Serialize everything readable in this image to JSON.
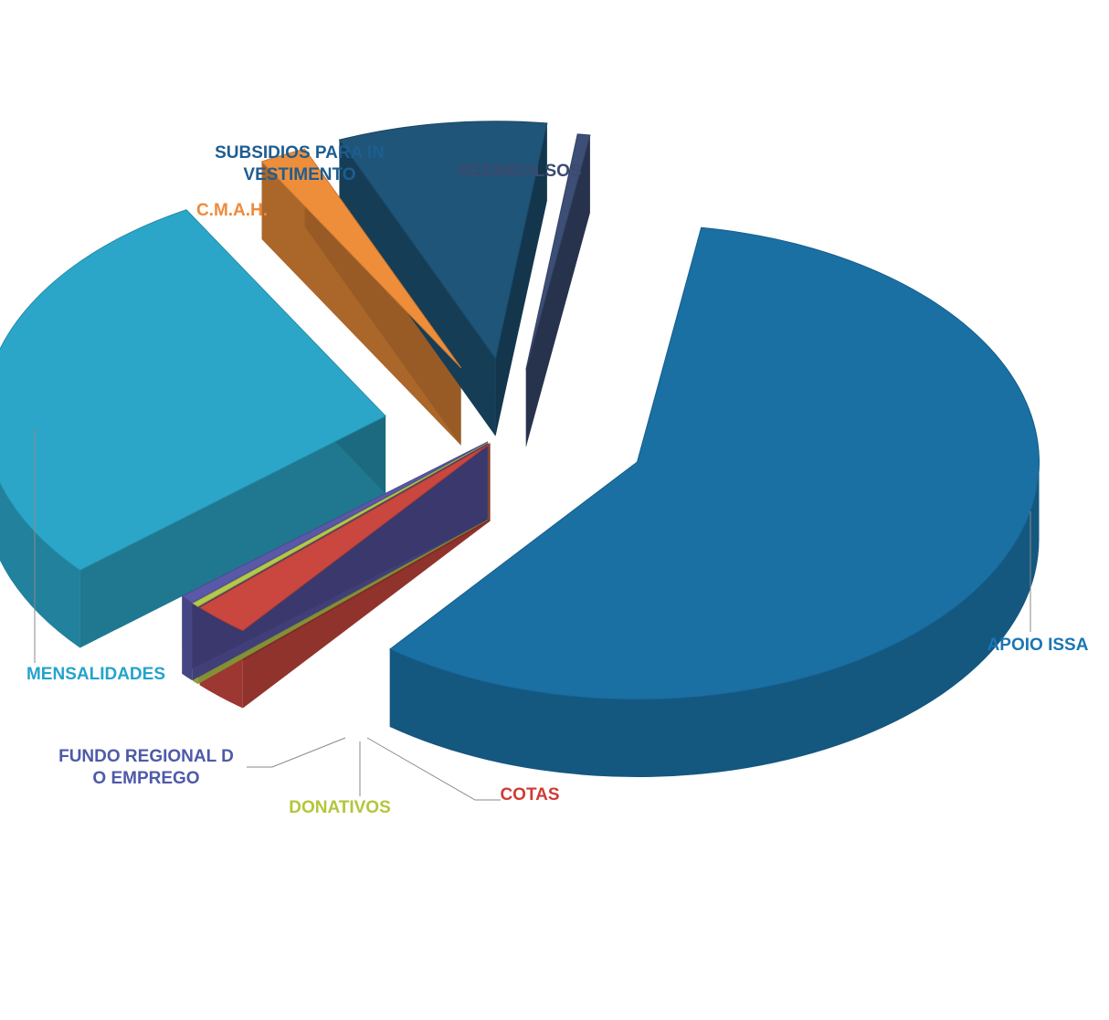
{
  "chart_data": {
    "type": "pie",
    "title": "",
    "slices": [
      {
        "label_lines": [
          "APOIO ISSA"
        ],
        "value": 58.0,
        "color": "#1A6FA3",
        "label_color": "#1B75B5"
      },
      {
        "label_lines": [
          "COTAS"
        ],
        "value": 2.3,
        "color": "#C9473F",
        "label_color": "#D03B36"
      },
      {
        "label_lines": [
          "DONATIVOS"
        ],
        "value": 0.3,
        "color": "#B5C94A",
        "label_color": "#B6C53A"
      },
      {
        "label_lines": [
          "FUNDO REGIONAL D",
          "O EMPREGO"
        ],
        "value": 0.6,
        "color": "#5A58A8",
        "label_color": "#4E5AA8"
      },
      {
        "label_lines": [
          "MENSALIDADES"
        ],
        "value": 28.0,
        "color": "#2CA6C8",
        "label_color": "#23A3CC"
      },
      {
        "label_lines": [
          "C.M.A.H."
        ],
        "value": 1.9,
        "color": "#EE8E3A",
        "label_color": "#EF8A3A"
      },
      {
        "label_lines": [
          "SUBSIDIOS PARA IN",
          "VESTIMENTO"
        ],
        "value": 8.4,
        "color": "#1E5578",
        "label_color": "#1E5D91"
      },
      {
        "label_lines": [
          "REEMBOLSOS"
        ],
        "value": 0.5,
        "color": "#3D4E77",
        "label_color": "#3B4A6E"
      }
    ],
    "style": "3d-exploded",
    "legend": "none"
  }
}
